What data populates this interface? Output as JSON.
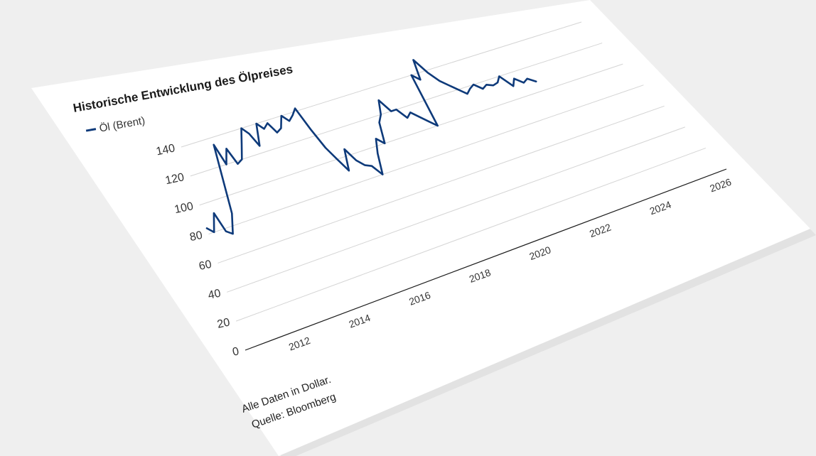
{
  "chart_data": {
    "type": "line",
    "title": "Historische Entwicklung des Ölpreises",
    "legend": {
      "position": "top-left"
    },
    "series": [
      {
        "name": "Öl (Brent)",
        "color": "#0e3a7a",
        "x": [
          2010.0,
          2010.2,
          2010.4,
          2010.6,
          2010.8,
          2011.0,
          2011.2,
          2011.4,
          2011.6,
          2011.8,
          2012.0,
          2012.2,
          2012.4,
          2012.6,
          2012.8,
          2013.0,
          2013.2,
          2013.4,
          2013.6,
          2013.8,
          2014.0,
          2014.2,
          2014.4,
          2014.6,
          2014.8,
          2015.0,
          2015.2,
          2015.4,
          2015.6,
          2015.8,
          2016.0,
          2016.2,
          2016.4,
          2016.6,
          2016.8,
          2017.0,
          2017.2,
          2017.4,
          2017.6,
          2017.8,
          2018.0,
          2018.2,
          2018.4,
          2018.6,
          2018.8,
          2019.0,
          2019.2,
          2019.4,
          2019.6,
          2019.8,
          2020.0,
          2020.2,
          2020.4,
          2020.6,
          2020.8,
          2021.0,
          2021.2,
          2021.4,
          2021.6,
          2021.8,
          2022.0,
          2022.2,
          2022.4,
          2022.6,
          2022.8,
          2023.0
        ],
        "values": [
          84,
          80,
          92,
          78,
          75,
          88,
          135,
          120,
          130,
          118,
          120,
          130,
          140,
          135,
          125,
          140,
          135,
          138,
          130,
          132,
          140,
          135,
          138,
          142,
          125,
          110,
          100,
          90,
          105,
          95,
          90,
          88,
          80,
          95,
          105,
          100,
          115,
          120,
          130,
          120,
          120,
          112,
          115,
          110,
          105,
          100,
          140,
          135,
          150,
          138,
          130,
          125,
          120,
          115,
          118,
          120,
          115,
          117,
          115,
          116,
          120,
          110,
          115,
          110,
          112,
          108
        ]
      }
    ],
    "xlim": [
      2010,
      2026
    ],
    "ylim": [
      0,
      140
    ],
    "x_ticks": [
      "2012",
      "2014",
      "2016",
      "2018",
      "2020",
      "2022",
      "2024",
      "2026"
    ],
    "y_ticks": [
      "0",
      "20",
      "40",
      "60",
      "80",
      "100",
      "120",
      "140"
    ],
    "grid": true
  },
  "footer": {
    "line1": "Alle Daten in Dollar.",
    "line2": "Quelle: Bloomberg"
  }
}
